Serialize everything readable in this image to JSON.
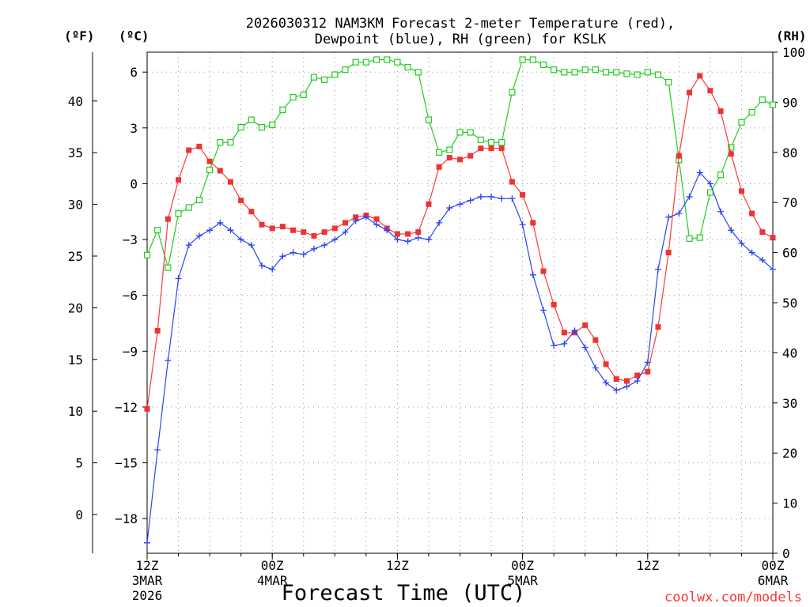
{
  "chart_data": {
    "type": "line",
    "title": "2026030312 NAM3KM Forecast 2-meter Temperature (red),",
    "subtitle": "Dewpoint (blue), RH (green) for KSLK",
    "xlabel": "Forecast Time (UTC)",
    "credit": "coolwx.com/models",
    "units": {
      "fahrenheit": "(ºF)",
      "celsius": "(ºC)",
      "rh": "(RH)"
    },
    "x_ticks": [
      {
        "hour": 0,
        "line1": "12Z",
        "line2": "3MAR",
        "line3": "2026"
      },
      {
        "hour": 12,
        "line1": "00Z",
        "line2": "4MAR",
        "line3": ""
      },
      {
        "hour": 24,
        "line1": "12Z",
        "line2": "",
        "line3": ""
      },
      {
        "hour": 36,
        "line1": "00Z",
        "line2": "5MAR",
        "line3": ""
      },
      {
        "hour": 48,
        "line1": "12Z",
        "line2": "",
        "line3": ""
      },
      {
        "hour": 60,
        "line1": "00Z",
        "line2": "6MAR",
        "line3": ""
      }
    ],
    "x_range": [
      0,
      60
    ],
    "celsius_range": [
      -19.86,
      7.07
    ],
    "celsius_ticks": [
      "6",
      "3",
      "0",
      "-3",
      "-6",
      "-9",
      "-12",
      "-15",
      "-18"
    ],
    "fahrenheit_ticks": [
      "40",
      "35",
      "30",
      "25",
      "20",
      "15",
      "10",
      "5",
      "0"
    ],
    "rh_range": [
      0,
      100
    ],
    "rh_ticks": [
      "100",
      "90",
      "80",
      "70",
      "60",
      "50",
      "40",
      "30",
      "20",
      "10",
      "0"
    ],
    "colors": {
      "temperature": "#ff3838",
      "temperature_marker": "#ee3333",
      "dewpoint": "#2a44ee",
      "rh": "#22cc22"
    },
    "series": [
      {
        "name": "Temperature",
        "unit": "C",
        "values": [
          -12.1,
          -7.9,
          -1.9,
          0.2,
          1.8,
          2.0,
          1.2,
          0.7,
          0.1,
          -0.9,
          -1.5,
          -2.2,
          -2.4,
          -2.3,
          -2.5,
          -2.6,
          -2.8,
          -2.6,
          -2.4,
          -2.1,
          -1.8,
          -1.7,
          -1.9,
          -2.4,
          -2.7,
          -2.7,
          -2.6,
          -1.1,
          0.9,
          1.4,
          1.3,
          1.5,
          1.9,
          1.9,
          1.9,
          0.1,
          -0.6,
          -2.1,
          -4.7,
          -6.5,
          -8.0,
          -8.0,
          -7.6,
          -8.4,
          -9.7,
          -10.5,
          -10.6,
          -10.3,
          -10.1,
          -7.7,
          -3.7,
          1.5,
          4.9,
          5.8,
          5.0,
          3.9,
          1.6,
          -0.4,
          -1.6,
          -2.6,
          -2.9
        ]
      },
      {
        "name": "Dewpoint",
        "unit": "C",
        "values": [
          -19.3,
          -14.3,
          -9.5,
          -5.1,
          -3.3,
          -2.8,
          -2.5,
          -2.1,
          -2.5,
          -3.0,
          -3.3,
          -4.4,
          -4.6,
          -3.9,
          -3.7,
          -3.8,
          -3.5,
          -3.3,
          -3.0,
          -2.6,
          -2.0,
          -1.8,
          -2.2,
          -2.5,
          -3.0,
          -3.1,
          -2.9,
          -3.0,
          -2.1,
          -1.3,
          -1.1,
          -0.9,
          -0.7,
          -0.7,
          -0.8,
          -0.8,
          -2.2,
          -4.9,
          -6.8,
          -8.7,
          -8.6,
          -7.9,
          -8.8,
          -9.9,
          -10.7,
          -11.1,
          -10.9,
          -10.6,
          -9.6,
          -4.6,
          -1.8,
          -1.6,
          -0.7,
          0.6,
          0.0,
          -1.5,
          -2.5,
          -3.2,
          -3.7,
          -4.1,
          -4.6
        ]
      },
      {
        "name": "RH",
        "unit": "%",
        "values": [
          59.5,
          64.5,
          57.0,
          67.8,
          69.0,
          70.5,
          76.5,
          82.0,
          82.0,
          85.0,
          86.5,
          85.0,
          85.5,
          88.5,
          91.0,
          91.5,
          95.0,
          94.5,
          95.5,
          96.5,
          98.0,
          98.0,
          98.5,
          98.5,
          98.0,
          97.0,
          96.0,
          86.5,
          80.0,
          80.5,
          84.0,
          84.0,
          82.5,
          82.0,
          82.0,
          92.0,
          98.5,
          98.5,
          97.5,
          96.5,
          96.0,
          96.0,
          96.5,
          96.5,
          96.0,
          96.0,
          95.7,
          95.5,
          96.0,
          95.5,
          94.0,
          78.5,
          62.8,
          63.0,
          72.0,
          75.5,
          81.0,
          86.0,
          88.0,
          90.5,
          89.5
        ]
      }
    ]
  }
}
